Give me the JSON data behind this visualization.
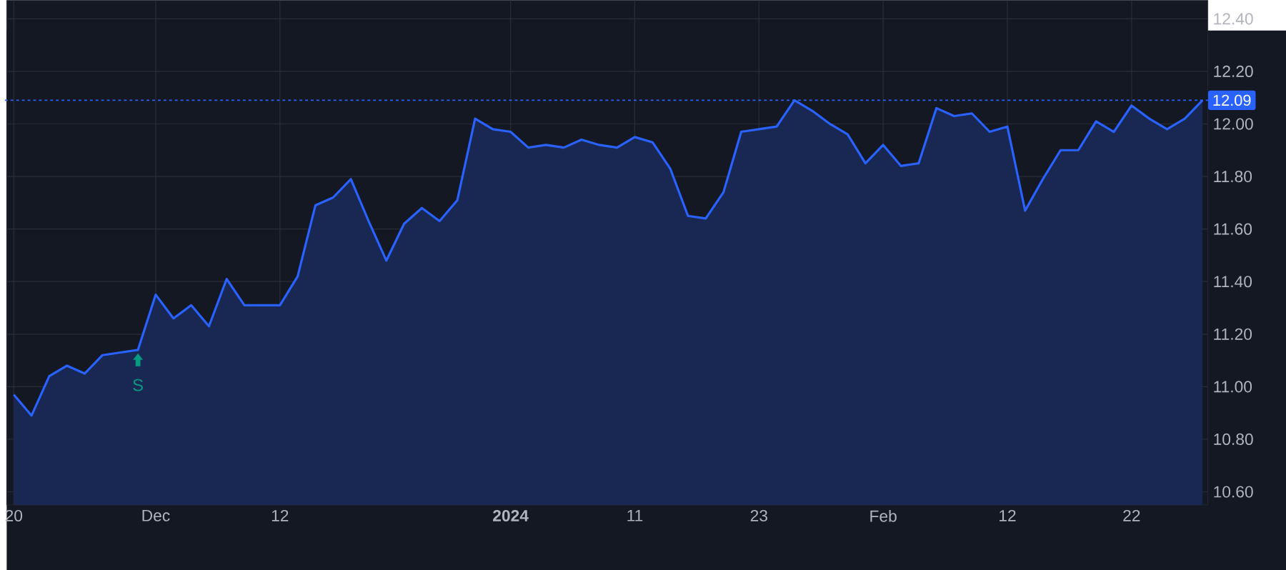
{
  "chart_data": {
    "type": "area",
    "categories": [
      "20",
      null,
      null,
      null,
      null,
      null,
      null,
      null,
      "Dec",
      null,
      null,
      null,
      null,
      null,
      null,
      "12",
      null,
      null,
      null,
      null,
      null,
      null,
      null,
      null,
      null,
      null,
      null,
      null,
      "**2024**",
      null,
      null,
      null,
      null,
      null,
      null,
      "11",
      null,
      null,
      null,
      null,
      null,
      null,
      "23",
      null,
      null,
      null,
      null,
      null,
      null,
      "Feb",
      null,
      null,
      null,
      null,
      null,
      null,
      "12",
      null,
      null,
      null,
      null,
      null,
      null,
      "22",
      null,
      null,
      null,
      null
    ],
    "series": [
      {
        "color": "#2962ff",
        "values": [
          10.97,
          10.89,
          11.04,
          11.08,
          11.05,
          11.12,
          11.13,
          11.14,
          11.35,
          11.26,
          11.31,
          11.23,
          11.41,
          11.31,
          11.31,
          11.31,
          11.42,
          11.69,
          11.72,
          11.79,
          11.63,
          11.48,
          11.62,
          11.68,
          11.63,
          11.71,
          12.02,
          11.98,
          11.97,
          11.91,
          11.92,
          11.91,
          11.94,
          11.92,
          11.91,
          11.95,
          11.93,
          11.83,
          11.65,
          11.64,
          11.74,
          11.97,
          11.98,
          11.99,
          12.09,
          12.05,
          12.0,
          11.96,
          11.85,
          11.92,
          11.84,
          11.85,
          12.06,
          12.03,
          12.04,
          11.97,
          11.99,
          11.67,
          11.79,
          11.9,
          11.9,
          12.01,
          11.97,
          12.07,
          12.02,
          11.98,
          12.02,
          12.09
        ]
      }
    ],
    "ylim": [
      10.55,
      12.47
    ],
    "yticks": [
      {
        "value": 10.6,
        "label": "10.60"
      },
      {
        "value": 10.8,
        "label": "10.80"
      },
      {
        "value": 11.0,
        "label": "11.00"
      },
      {
        "value": 11.2,
        "label": "11.20"
      },
      {
        "value": 11.4,
        "label": "11.40"
      },
      {
        "value": 11.6,
        "label": "11.60"
      },
      {
        "value": 11.8,
        "label": "11.80"
      },
      {
        "value": 12.0,
        "label": "12.00"
      },
      {
        "value": 12.2,
        "label": "12.20"
      },
      {
        "value": 12.4,
        "label": "12.40"
      }
    ],
    "grid": true,
    "ref_lines": [
      {
        "axis": "y",
        "value": 12.09,
        "label": "12.09",
        "color": "#2962ff",
        "line_style": "dashed"
      }
    ],
    "annotations": [
      {
        "text": "S",
        "y": 11.14
      }
    ]
  }
}
